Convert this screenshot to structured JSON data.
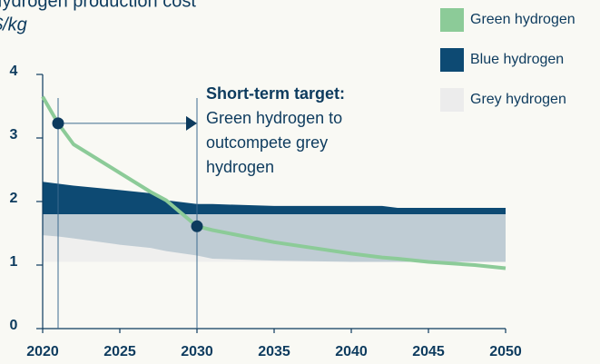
{
  "chart_data": {
    "type": "band-line",
    "title": "Hydrogen production cost",
    "ylabel": "$/kg",
    "x": [
      2020,
      2021,
      2022,
      2025,
      2027,
      2028,
      2030,
      2031,
      2035,
      2040,
      2042,
      2043,
      2045,
      2048,
      2050
    ],
    "xlim": [
      2020,
      2050
    ],
    "xticks": [
      2020,
      2025,
      2030,
      2035,
      2040,
      2045,
      2050
    ],
    "ylim": [
      0,
      4
    ],
    "yticks": [
      0,
      1,
      2,
      3,
      4
    ],
    "series": [
      {
        "name": "Green hydrogen",
        "color": "#8ccb98",
        "kind": "line",
        "values": [
          3.65,
          3.23,
          2.9,
          2.45,
          2.15,
          2.02,
          1.61,
          1.55,
          1.36,
          1.18,
          1.12,
          1.1,
          1.05,
          1.0,
          0.95
        ]
      },
      {
        "name": "Blue hydrogen",
        "color": "#0d4a73",
        "kind": "band",
        "low": [
          1.47,
          1.45,
          1.42,
          1.32,
          1.27,
          1.22,
          1.15,
          1.1,
          1.07,
          1.05,
          1.05,
          1.05,
          1.05,
          1.05,
          1.05
        ],
        "high": [
          2.31,
          2.28,
          2.25,
          2.18,
          2.13,
          2.02,
          1.96,
          1.96,
          1.93,
          1.93,
          1.93,
          1.9,
          1.9,
          1.9,
          1.9
        ]
      },
      {
        "name": "Grey hydrogen",
        "color": "#ececec",
        "kind": "band",
        "low": [
          1.05,
          1.05,
          1.05,
          1.05,
          1.05,
          1.05,
          1.05,
          1.05,
          1.05,
          1.05,
          1.05,
          1.05,
          1.05,
          1.05,
          1.05
        ],
        "high": [
          1.8,
          1.8,
          1.8,
          1.8,
          1.8,
          1.8,
          1.8,
          1.8,
          1.8,
          1.8,
          1.8,
          1.8,
          1.8,
          1.8,
          1.8
        ]
      }
    ],
    "annotation": {
      "title": "Short-term target:",
      "lines": [
        "Green hydrogen to",
        "outcompete grey",
        "hydrogen"
      ],
      "from_x": 2021,
      "to_x": 2030
    }
  }
}
